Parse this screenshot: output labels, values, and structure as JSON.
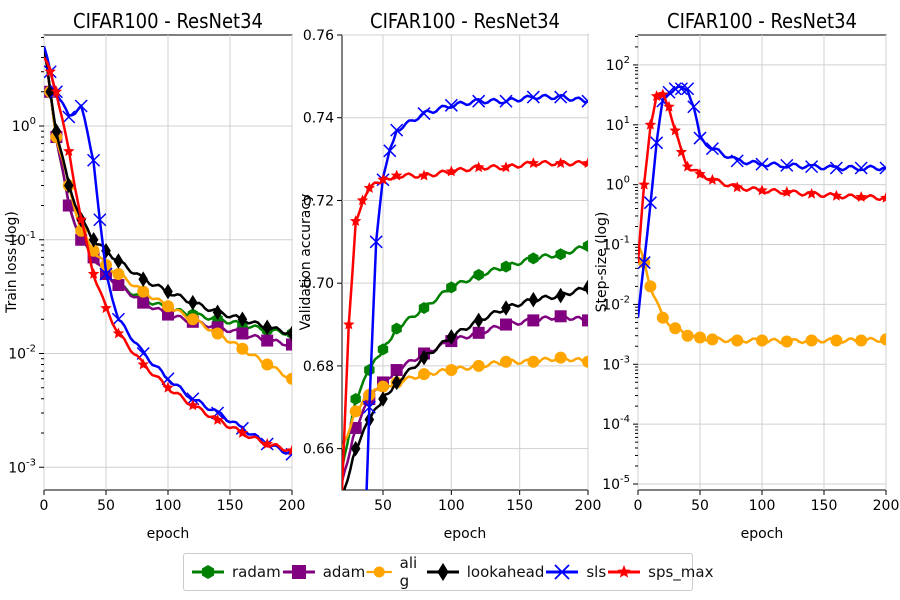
{
  "legend": [
    {
      "name": "radam",
      "color": "#008000",
      "marker": "hexagon"
    },
    {
      "name": "adam",
      "color": "#800080",
      "marker": "square"
    },
    {
      "name": "ali g",
      "color": "#ffa500",
      "marker": "circle"
    },
    {
      "name": "lookahead",
      "color": "#000000",
      "marker": "diamond"
    },
    {
      "name": "sls",
      "color": "#0000ff",
      "marker": "x"
    },
    {
      "name": "sps_max",
      "color": "#ff0000",
      "marker": "star"
    }
  ],
  "chart_data": [
    {
      "type": "line",
      "title": "CIFAR100 - ResNet34",
      "xlabel": "epoch",
      "ylabel": "Train loss (log)",
      "yscale": "log",
      "xlim": [
        0,
        200
      ],
      "ylim_exp": [
        -3.2,
        0.8
      ],
      "xticks": [
        "0",
        "50",
        "100",
        "150",
        "200"
      ],
      "yticks_exp": [
        -3,
        -2,
        -1,
        0
      ],
      "ytick_labels": [
        "10^-3",
        "10^-2",
        "10^-1",
        "10^0"
      ],
      "grid": true,
      "series": [
        {
          "name": "radam",
          "x": [
            0,
            5,
            10,
            20,
            30,
            40,
            50,
            60,
            80,
            100,
            120,
            140,
            160,
            180,
            200
          ],
          "y": [
            5,
            2,
            0.8,
            0.2,
            0.1,
            0.07,
            0.05,
            0.04,
            0.03,
            0.025,
            0.022,
            0.02,
            0.018,
            0.016,
            0.015
          ]
        },
        {
          "name": "adam",
          "x": [
            0,
            5,
            10,
            20,
            30,
            40,
            50,
            60,
            80,
            100,
            120,
            140,
            160,
            180,
            200
          ],
          "y": [
            5,
            2,
            0.8,
            0.2,
            0.1,
            0.07,
            0.05,
            0.04,
            0.028,
            0.022,
            0.019,
            0.017,
            0.015,
            0.013,
            0.012
          ]
        },
        {
          "name": "ali g",
          "x": [
            0,
            5,
            10,
            20,
            30,
            40,
            50,
            60,
            80,
            100,
            120,
            140,
            160,
            180,
            200
          ],
          "y": [
            5,
            2,
            0.8,
            0.3,
            0.12,
            0.08,
            0.06,
            0.05,
            0.035,
            0.026,
            0.02,
            0.015,
            0.011,
            0.008,
            0.006
          ]
        },
        {
          "name": "lookahead",
          "x": [
            0,
            5,
            10,
            20,
            30,
            40,
            50,
            60,
            80,
            100,
            120,
            140,
            160,
            180,
            200
          ],
          "y": [
            5,
            2,
            0.9,
            0.3,
            0.15,
            0.1,
            0.08,
            0.065,
            0.045,
            0.035,
            0.028,
            0.023,
            0.02,
            0.017,
            0.015
          ]
        },
        {
          "name": "sls",
          "x": [
            0,
            5,
            10,
            20,
            30,
            40,
            45,
            50,
            60,
            80,
            100,
            120,
            140,
            160,
            180,
            200
          ],
          "y": [
            5,
            3,
            2,
            1.2,
            1.5,
            0.5,
            0.15,
            0.05,
            0.02,
            0.01,
            0.006,
            0.004,
            0.003,
            0.0022,
            0.0016,
            0.0013
          ]
        },
        {
          "name": "sps_max",
          "x": [
            0,
            5,
            10,
            20,
            30,
            40,
            50,
            60,
            80,
            100,
            120,
            140,
            160,
            180,
            200
          ],
          "y": [
            4,
            3,
            2,
            0.6,
            0.15,
            0.05,
            0.025,
            0.015,
            0.008,
            0.005,
            0.0035,
            0.0026,
            0.002,
            0.0016,
            0.0014
          ]
        }
      ]
    },
    {
      "type": "line",
      "title": "CIFAR100 - ResNet34",
      "xlabel": "epoch",
      "ylabel": "Validation accuracy",
      "xlim": [
        20,
        200
      ],
      "ylim": [
        0.65,
        0.76
      ],
      "xticks": [
        "50",
        "100",
        "150",
        "200"
      ],
      "yticks": [
        "0.66",
        "0.68",
        "0.70",
        "0.72",
        "0.74",
        "0.76"
      ],
      "grid": true,
      "series": [
        {
          "name": "radam",
          "x": [
            20,
            30,
            40,
            50,
            60,
            80,
            100,
            120,
            140,
            160,
            180,
            200
          ],
          "y": [
            0.655,
            0.672,
            0.679,
            0.684,
            0.689,
            0.694,
            0.699,
            0.702,
            0.704,
            0.706,
            0.707,
            0.709
          ]
        },
        {
          "name": "adam",
          "x": [
            20,
            30,
            40,
            50,
            60,
            80,
            100,
            120,
            140,
            160,
            180,
            200
          ],
          "y": [
            0.652,
            0.665,
            0.672,
            0.676,
            0.679,
            0.683,
            0.686,
            0.688,
            0.69,
            0.691,
            0.692,
            0.691
          ]
        },
        {
          "name": "ali g",
          "x": [
            20,
            30,
            40,
            50,
            60,
            80,
            100,
            120,
            140,
            160,
            180,
            200
          ],
          "y": [
            0.66,
            0.669,
            0.673,
            0.675,
            0.676,
            0.678,
            0.679,
            0.68,
            0.681,
            0.681,
            0.682,
            0.681
          ]
        },
        {
          "name": "lookahead",
          "x": [
            20,
            30,
            40,
            50,
            60,
            80,
            100,
            120,
            140,
            160,
            180,
            200
          ],
          "y": [
            0.648,
            0.66,
            0.667,
            0.672,
            0.676,
            0.682,
            0.687,
            0.691,
            0.694,
            0.696,
            0.697,
            0.699
          ]
        },
        {
          "name": "sls",
          "x": [
            38,
            40,
            45,
            50,
            55,
            60,
            80,
            100,
            120,
            140,
            160,
            180,
            200
          ],
          "y": [
            0.65,
            0.67,
            0.71,
            0.725,
            0.732,
            0.737,
            0.741,
            0.743,
            0.744,
            0.744,
            0.745,
            0.745,
            0.744
          ]
        },
        {
          "name": "sps_max",
          "x": [
            20,
            25,
            30,
            35,
            40,
            50,
            60,
            80,
            100,
            120,
            140,
            160,
            180,
            200
          ],
          "y": [
            0.65,
            0.69,
            0.715,
            0.72,
            0.723,
            0.725,
            0.726,
            0.726,
            0.727,
            0.728,
            0.728,
            0.729,
            0.729,
            0.729
          ]
        }
      ]
    },
    {
      "type": "line",
      "title": "CIFAR100 - ResNet34",
      "xlabel": "epoch",
      "ylabel": "Step-size (log)",
      "yscale": "log",
      "xlim": [
        0,
        200
      ],
      "ylim_exp": [
        -5.1,
        2.5
      ],
      "xticks": [
        "0",
        "50",
        "100",
        "150",
        "200"
      ],
      "yticks_exp": [
        -5,
        -4,
        -3,
        -2,
        -1,
        0,
        1,
        2
      ],
      "ytick_labels": [
        "10^-5",
        "10^-4",
        "10^-3",
        "10^-2",
        "10^-1",
        "10^0",
        "10^1",
        "10^2"
      ],
      "grid": true,
      "series": [
        {
          "name": "ali g",
          "x": [
            0,
            5,
            10,
            20,
            30,
            40,
            50,
            60,
            80,
            100,
            120,
            140,
            160,
            180,
            200
          ],
          "y": [
            0.1,
            0.05,
            0.02,
            0.006,
            0.004,
            0.003,
            0.0028,
            0.0026,
            0.0025,
            0.0025,
            0.0024,
            0.0025,
            0.0025,
            0.0025,
            0.0026
          ]
        },
        {
          "name": "sls",
          "x": [
            0,
            5,
            10,
            15,
            20,
            25,
            30,
            35,
            40,
            45,
            50,
            60,
            80,
            100,
            120,
            140,
            160,
            180,
            200
          ],
          "y": [
            0.006,
            0.05,
            0.5,
            5,
            25,
            35,
            40,
            40,
            40,
            20,
            6,
            4,
            2.5,
            2.2,
            2.1,
            2,
            1.9,
            1.9,
            1.9
          ]
        },
        {
          "name": "sps_max",
          "x": [
            0,
            5,
            10,
            15,
            20,
            25,
            30,
            35,
            40,
            50,
            60,
            80,
            100,
            120,
            140,
            160,
            180,
            200
          ],
          "y": [
            0.05,
            1,
            10,
            30,
            32,
            20,
            8,
            3.5,
            2,
            1.5,
            1.2,
            0.9,
            0.8,
            0.75,
            0.7,
            0.65,
            0.62,
            0.6
          ]
        }
      ]
    }
  ]
}
